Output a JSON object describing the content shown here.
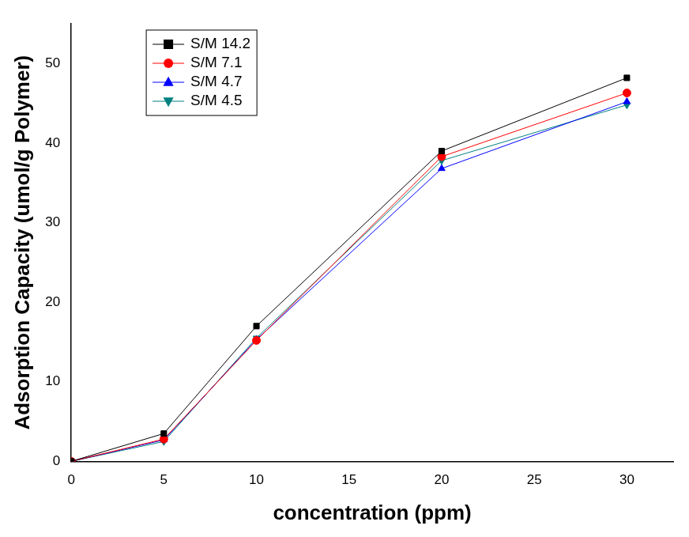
{
  "chart_data": {
    "type": "line",
    "x_label": "concentration (ppm)",
    "y_label": "Adsorption Capacity (umol/g Polymer)",
    "x": [
      0,
      5,
      10,
      20,
      30
    ],
    "series": [
      {
        "name": "S/M 14.2",
        "color": "#000000",
        "marker": "square",
        "values": [
          0,
          3.5,
          17,
          39,
          48.2
        ]
      },
      {
        "name": "S/M 7.1",
        "color": "#ff0000",
        "marker": "circle",
        "values": [
          0,
          2.8,
          15.2,
          38.3,
          46.3
        ]
      },
      {
        "name": "S/M 4.7",
        "color": "#0000ff",
        "marker": "triangle-up",
        "values": [
          0,
          2.7,
          15.3,
          36.8,
          45.2
        ]
      },
      {
        "name": "S/M 4.5",
        "color": "#008080",
        "marker": "triangle-down",
        "values": [
          0,
          2.5,
          15.5,
          37.8,
          44.8
        ]
      }
    ],
    "xlim": [
      0,
      32.5
    ],
    "xticks": [
      0,
      5,
      10,
      15,
      20,
      25,
      30
    ],
    "ylim": [
      0,
      55
    ],
    "yticks": [
      0,
      10,
      20,
      30,
      40,
      50
    ],
    "grid": false,
    "legend": "upper left"
  }
}
